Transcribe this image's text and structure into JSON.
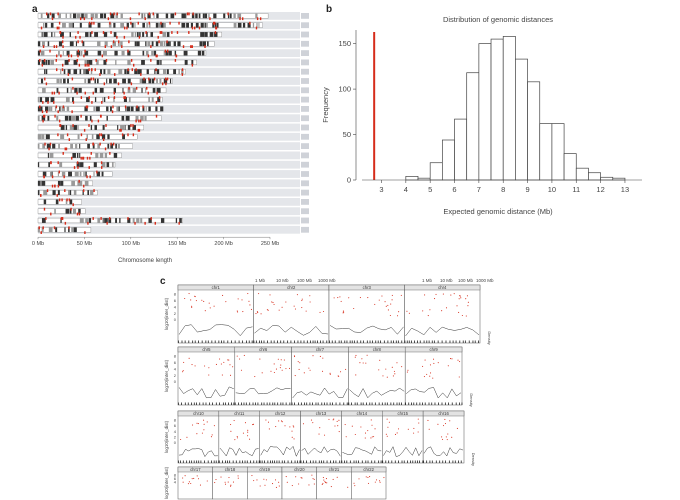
{
  "panels": {
    "a": {
      "letter": "a"
    },
    "b": {
      "letter": "b"
    },
    "c": {
      "letter": "c"
    }
  },
  "chart_data": [
    {
      "panel": "a",
      "type": "bar",
      "description_free": true,
      "xlabel": "Chromosome length",
      "x_ticks": [
        "0 Mb",
        "50 Mb",
        "100 Mb",
        "150 Mb",
        "200 Mb",
        "250 Mb"
      ],
      "xlim": [
        0,
        250
      ],
      "chromosome_lengths_mb": [
        248,
        242,
        198,
        190,
        181,
        171,
        159,
        145,
        138,
        134,
        135,
        133,
        114,
        107,
        102,
        90,
        83,
        80,
        59,
        64,
        47,
        51,
        156,
        57
      ],
      "colors": {
        "band_dark": "#333333",
        "band_mid": "#999999",
        "marker": "#d62c1a",
        "row_bg": "#e4e6ea"
      }
    },
    {
      "panel": "b",
      "type": "bar",
      "title": "Distribution of genomic distances",
      "xlabel": "Expected genomic distance (Mb)",
      "ylabel": "Frequency",
      "x_ticks": [
        3,
        4,
        5,
        6,
        7,
        8,
        9,
        10,
        11,
        12,
        13
      ],
      "y_ticks": [
        0,
        50,
        100,
        150
      ],
      "xlim": [
        2.2,
        13.7
      ],
      "ylim": [
        0,
        165
      ],
      "bin_width": 0.5,
      "bins_start": [
        4.0,
        4.5,
        5.0,
        5.5,
        6.0,
        6.5,
        7.0,
        7.5,
        8.0,
        8.5,
        9.0,
        9.5,
        10.0,
        10.5,
        11.0,
        11.5,
        12.0,
        12.5
      ],
      "values": [
        4,
        2,
        19,
        44,
        67,
        118,
        150,
        155,
        158,
        133,
        108,
        62,
        62,
        29,
        13,
        8,
        3,
        2
      ],
      "observed_line_x": 2.7,
      "colors": {
        "bar_fill": "#ffffff",
        "bar_stroke": "#444444",
        "observed": "#d62c1a"
      }
    },
    {
      "panel": "c",
      "type": "scatter",
      "ylabel": "log10(inter_dist)",
      "y_ticks": [
        0,
        2,
        4,
        6,
        8
      ],
      "ylim": [
        -1,
        9
      ],
      "legend_top": [
        "1 Mb",
        "10 Mb",
        "100 Mb",
        "1000 Mb"
      ],
      "rows": [
        {
          "chromosomes": [
            "chr1",
            "chr2",
            "chr3",
            "chr4"
          ]
        },
        {
          "chromosomes": [
            "chr5",
            "chr6",
            "chr7",
            "chr8",
            "chr9"
          ]
        },
        {
          "chromosomes": [
            "chr10",
            "chr11",
            "chr12",
            "chr13",
            "chr14",
            "chr15",
            "chr16"
          ]
        },
        {
          "chromosomes": [
            "chr17",
            "chr18",
            "chr19",
            "chr20",
            "chr21",
            "chr22"
          ]
        }
      ],
      "side_label": "Density",
      "colors": {
        "point": "#d62c1a",
        "line": "#333333",
        "header": "#e3e3e3"
      }
    }
  ]
}
